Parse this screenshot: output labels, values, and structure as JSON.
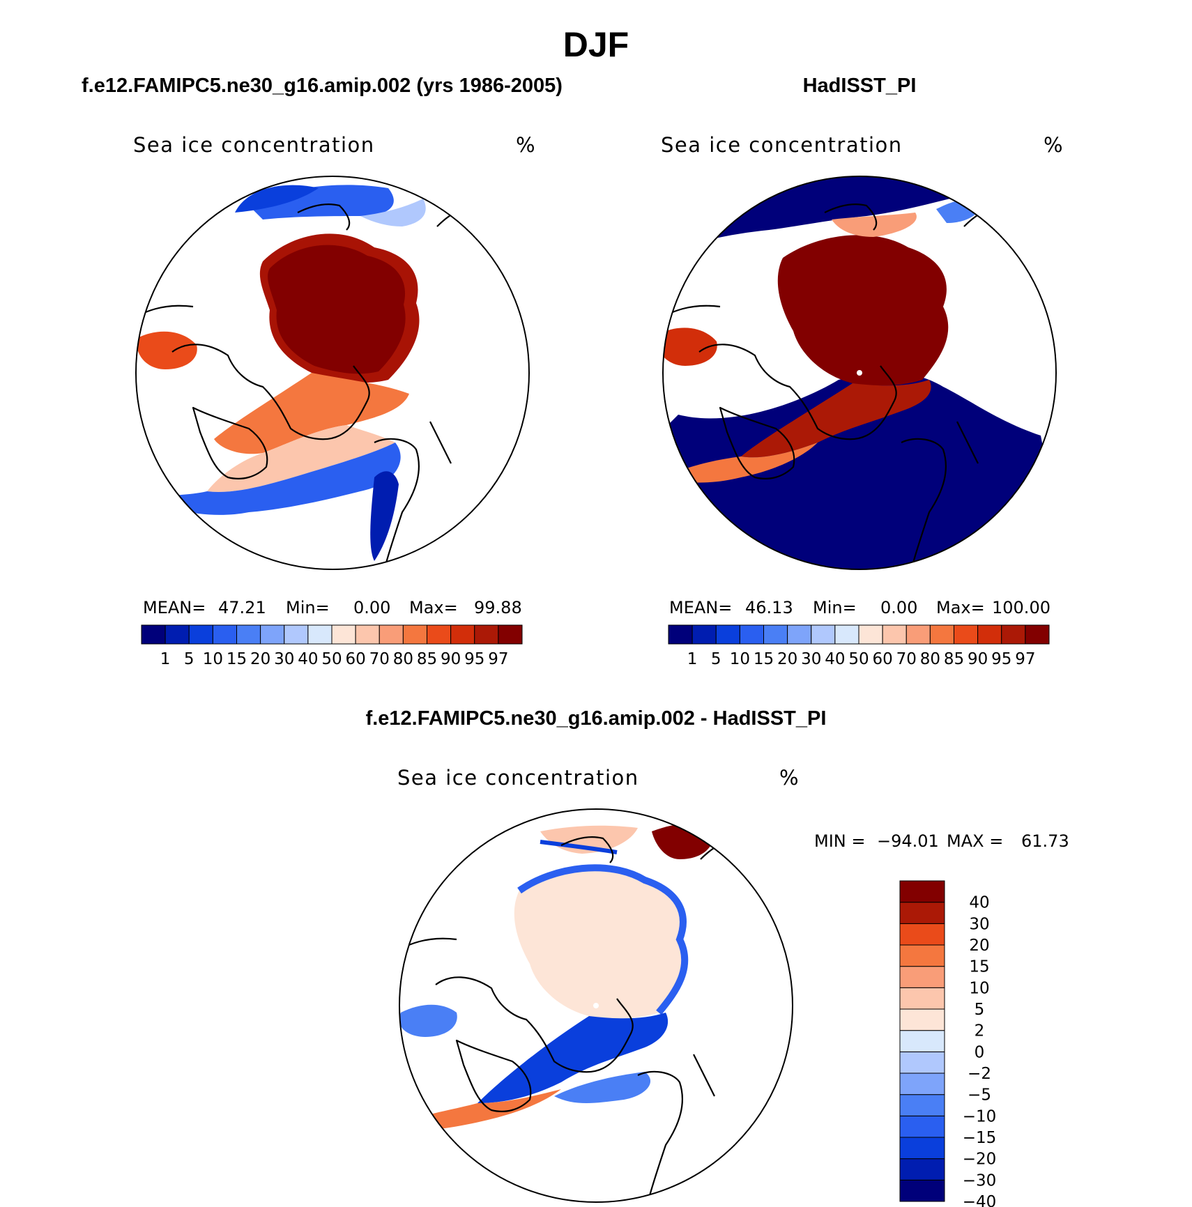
{
  "figure": {
    "season": "DJF",
    "left_title": "f.e12.FAMIPC5.ne30_g16.amip.002 (yrs 1986-2005)",
    "right_title": "HadISST_PI",
    "diff_title": "f.e12.FAMIPC5.ne30_g16.amip.002 - HadISST_PI"
  },
  "panels": [
    {
      "id": "model",
      "variable": "Sea ice concentration",
      "units": "%",
      "stats": {
        "mean_label": "MEAN=",
        "mean": "47.21",
        "min_label": "Min=",
        "min": "0.00",
        "max_label": "Max=",
        "max": "99.88"
      }
    },
    {
      "id": "obs",
      "variable": "Sea ice concentration",
      "units": "%",
      "stats": {
        "mean_label": "MEAN=",
        "mean": "46.13",
        "min_label": "Min=",
        "min": "0.00",
        "max_label": "Max=",
        "max": "100.00"
      }
    },
    {
      "id": "diff",
      "variable": "Sea ice concentration",
      "units": "%",
      "stats": {
        "min_label": "MIN =",
        "min": "−94.01",
        "max_label": "MAX =",
        "max": "61.73"
      }
    }
  ],
  "colorbars": {
    "abs": {
      "colors": [
        "#00007a",
        "#001db0",
        "#0a3fdc",
        "#2a5ff0",
        "#4a7ff5",
        "#7ea4fa",
        "#b0c8fd",
        "#d8e8fc",
        "#fde5d7",
        "#fcc6ad",
        "#f99d78",
        "#f4773f",
        "#ea4b1a",
        "#d22e0a",
        "#ab1906",
        "#820000"
      ],
      "labels": [
        "1",
        "5",
        "10",
        "15",
        "20",
        "30",
        "40",
        "50",
        "60",
        "70",
        "80",
        "85",
        "90",
        "95",
        "97"
      ]
    },
    "diff": {
      "colors": [
        "#00007a",
        "#001db0",
        "#0a3fdc",
        "#2a5ff0",
        "#4a7ff5",
        "#7ea4fa",
        "#b0c8fd",
        "#d8e8fc",
        "#fde5d7",
        "#fcc6ad",
        "#f99d78",
        "#f4773f",
        "#ea4b1a",
        "#ab1906",
        "#820000"
      ],
      "labels": [
        "40",
        "30",
        "20",
        "15",
        "10",
        "5",
        "2",
        "0",
        "−2",
        "−5",
        "−10",
        "−15",
        "−20",
        "−30",
        "−40"
      ]
    }
  }
}
